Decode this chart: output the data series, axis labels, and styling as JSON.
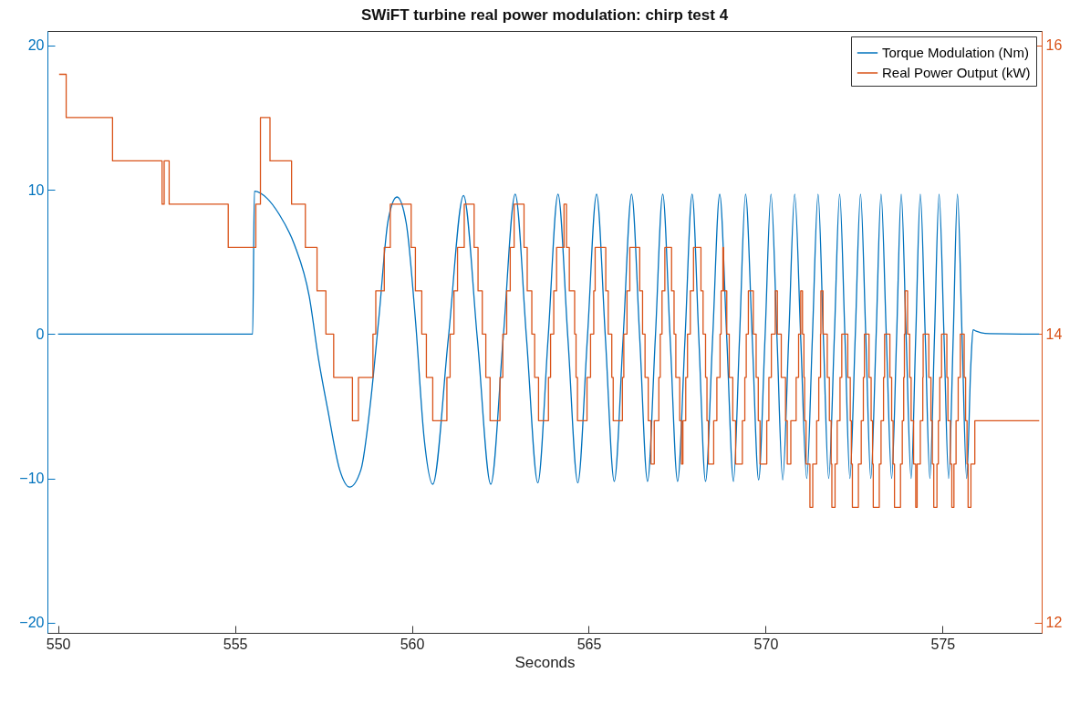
{
  "chart_data": {
    "type": "line",
    "title": "SWiFT turbine real power modulation: chirp test 4",
    "xlabel": "Seconds",
    "xlim": [
      549.7,
      577.8
    ],
    "xticks": [
      550,
      555,
      560,
      565,
      570,
      575
    ],
    "ylim": [
      -20.7,
      21
    ],
    "yticks": [
      -20,
      -10,
      0,
      10,
      20
    ],
    "y2lim": [
      11.93,
      16.1
    ],
    "y2ticks": [
      12,
      14,
      16
    ],
    "legend": "top right",
    "series": [
      {
        "name": "Torque Modulation (Nm)",
        "color": "#0072bd",
        "x": [
          550.0,
          555.5,
          555.55,
          555.91,
          556.25,
          556.68,
          557.1,
          557.36,
          557.62,
          557.96,
          558.24,
          558.56,
          558.81,
          559.07,
          559.33,
          559.58,
          559.84,
          560.1,
          560.35,
          560.59,
          561.03,
          561.46,
          561.85,
          562.23,
          562.58,
          562.92,
          563.24,
          563.56,
          563.85,
          564.13,
          564.41,
          564.69,
          564.96,
          565.22,
          565.47,
          565.72,
          565.97,
          566.21,
          566.44,
          566.66,
          566.88,
          567.09,
          567.3,
          567.51,
          567.72,
          567.92,
          568.11,
          568.3,
          568.5,
          568.7,
          568.9,
          569.09,
          569.26,
          569.43,
          569.62,
          569.8,
          569.98,
          570.15,
          570.32,
          570.48,
          570.65,
          570.82,
          570.99,
          571.16,
          571.32,
          571.48,
          571.63,
          571.78,
          571.94,
          572.09,
          572.24,
          572.38,
          572.53,
          572.68,
          572.83,
          572.97,
          573.12,
          573.26,
          573.41,
          573.56,
          573.7,
          573.83,
          573.97,
          574.11,
          574.24,
          574.37,
          574.51,
          574.64,
          574.77,
          574.9,
          575.04,
          575.17,
          575.3,
          575.42,
          575.55,
          575.68,
          575.8,
          575.86,
          575.95,
          576.2,
          577.73
        ],
        "values": [
          0,
          0,
          9.9,
          9.4,
          8.3,
          6.2,
          2.6,
          -1.7,
          -5.2,
          -9.4,
          -10.6,
          -9.4,
          -5.2,
          1.2,
          7.9,
          9.5,
          7.7,
          1.0,
          -7.3,
          -10.4,
          -0.3,
          9.6,
          -0.3,
          -10.4,
          -0.3,
          9.7,
          -0.3,
          -10.3,
          -0.3,
          9.7,
          -0.3,
          -10.3,
          -0.3,
          9.7,
          -0.3,
          -10.2,
          -0.3,
          9.7,
          -0.3,
          -10.2,
          -0.3,
          9.7,
          -0.3,
          -10.2,
          -0.3,
          9.7,
          -0.3,
          -10.2,
          -0.3,
          9.7,
          -0.3,
          -10.2,
          -0.3,
          9.7,
          -0.3,
          -10.1,
          -0.3,
          9.7,
          -0.3,
          -10.1,
          -0.3,
          9.7,
          -0.3,
          -10.0,
          -0.2,
          9.7,
          -0.2,
          -10.0,
          -0.2,
          9.7,
          -0.2,
          -10.0,
          -0.2,
          9.7,
          -0.2,
          -10.0,
          -0.2,
          9.7,
          -0.2,
          -10.0,
          -0.2,
          9.7,
          -0.2,
          -10.0,
          -0.2,
          9.7,
          -0.2,
          -10.0,
          -0.2,
          9.7,
          -0.2,
          -10.0,
          -0.2,
          9.7,
          -0.2,
          -10.0,
          -2.0,
          0.3,
          0.2,
          0.05,
          0
        ]
      },
      {
        "name": "Real Power Output (kW)",
        "color": "#d95319",
        "type": "step",
        "axis": "y2",
        "x": [
          550.03,
          550.23,
          551.54,
          552.94,
          553.0,
          553.14,
          554.81,
          555.59,
          555.72,
          555.99,
          556.6,
          556.99,
          557.32,
          557.57,
          557.79,
          558.32,
          558.49,
          558.9,
          558.98,
          559.22,
          559.39,
          559.98,
          560.1,
          560.28,
          560.41,
          560.59,
          560.99,
          561.08,
          561.19,
          561.29,
          561.48,
          561.76,
          561.87,
          561.99,
          562.09,
          562.21,
          562.49,
          562.57,
          562.68,
          562.78,
          562.89,
          563.17,
          563.26,
          563.39,
          563.47,
          563.58,
          563.86,
          563.92,
          564.01,
          564.09,
          564.3,
          564.37,
          564.45,
          564.6,
          564.64,
          564.68,
          564.95,
          565.05,
          565.14,
          565.18,
          565.48,
          565.55,
          565.65,
          565.69,
          565.95,
          565.99,
          566.08,
          566.16,
          566.44,
          566.52,
          566.59,
          566.68,
          566.76,
          566.85,
          566.98,
          567.02,
          567.07,
          567.15,
          567.34,
          567.41,
          567.46,
          567.57,
          567.62,
          567.66,
          567.74,
          567.79,
          567.87,
          567.96,
          568.17,
          568.23,
          568.3,
          568.34,
          568.38,
          568.53,
          568.62,
          568.71,
          568.74,
          568.79,
          568.81,
          568.9,
          568.97,
          569.07,
          569.15,
          569.34,
          569.41,
          569.45,
          569.51,
          569.65,
          569.73,
          569.79,
          569.84,
          570.03,
          570.09,
          570.16,
          570.27,
          570.33,
          570.44,
          570.56,
          570.61,
          570.71,
          570.86,
          570.93,
          570.99,
          571.04,
          571.08,
          571.1,
          571.14,
          571.25,
          571.33,
          571.44,
          571.5,
          571.55,
          571.56,
          571.62,
          571.74,
          571.8,
          571.85,
          571.87,
          571.96,
          572.02,
          572.1,
          572.15,
          572.32,
          572.39,
          572.42,
          572.45,
          572.62,
          572.7,
          572.76,
          572.79,
          572.92,
          572.98,
          573.02,
          573.04,
          573.21,
          573.26,
          573.33,
          573.36,
          573.51,
          573.56,
          573.6,
          573.64,
          573.81,
          573.86,
          573.9,
          573.92,
          573.94,
          574.01,
          574.07,
          574.11,
          574.18,
          574.24,
          574.28,
          574.37,
          574.44,
          574.45,
          574.61,
          574.67,
          574.71,
          574.75,
          574.84,
          574.88,
          574.92,
          574.97,
          575.12,
          575.15,
          575.22,
          575.26,
          575.32,
          575.38,
          575.44,
          575.5,
          575.61,
          575.65,
          575.69,
          575.72,
          575.8,
          575.91,
          577.73
        ],
        "values": [
          15.8,
          15.5,
          15.2,
          14.9,
          15.2,
          14.9,
          14.6,
          14.9,
          15.5,
          15.2,
          14.9,
          14.6,
          14.3,
          14.0,
          13.7,
          13.4,
          13.7,
          14.0,
          14.3,
          14.6,
          14.9,
          14.6,
          14.3,
          14.0,
          13.7,
          13.4,
          13.7,
          14.0,
          14.3,
          14.6,
          14.9,
          14.6,
          14.3,
          14.0,
          13.7,
          13.4,
          13.7,
          14.0,
          14.3,
          14.6,
          14.9,
          14.6,
          14.3,
          14.0,
          13.7,
          13.4,
          13.7,
          14.0,
          14.3,
          14.6,
          14.9,
          14.6,
          14.3,
          14.0,
          13.7,
          13.4,
          13.7,
          14.0,
          14.3,
          14.6,
          14.3,
          14.0,
          13.7,
          13.4,
          13.7,
          14.0,
          14.3,
          14.6,
          14.3,
          14.0,
          13.7,
          13.4,
          13.1,
          13.4,
          13.7,
          14.0,
          14.3,
          14.6,
          14.3,
          14.0,
          13.7,
          13.4,
          13.1,
          13.4,
          13.7,
          14.0,
          14.3,
          14.6,
          14.3,
          14.0,
          13.7,
          13.4,
          13.1,
          13.4,
          13.7,
          14.0,
          14.3,
          14.6,
          14.3,
          14.0,
          13.7,
          13.4,
          13.1,
          13.4,
          13.7,
          14.0,
          14.3,
          14.0,
          13.7,
          13.4,
          13.1,
          13.4,
          13.7,
          14.0,
          14.3,
          14.0,
          13.7,
          13.4,
          13.1,
          13.4,
          13.7,
          14.0,
          14.3,
          14.0,
          13.7,
          13.4,
          13.1,
          12.8,
          13.1,
          13.4,
          13.7,
          14.0,
          14.3,
          14.0,
          13.7,
          13.4,
          13.1,
          12.8,
          13.1,
          13.4,
          13.7,
          14.0,
          13.7,
          13.4,
          13.1,
          12.8,
          13.1,
          13.4,
          13.7,
          14.0,
          13.7,
          13.4,
          13.1,
          12.8,
          13.1,
          13.4,
          13.7,
          14.0,
          13.7,
          13.4,
          13.1,
          12.8,
          13.1,
          13.4,
          13.7,
          14.0,
          14.3,
          14.0,
          13.7,
          13.4,
          13.1,
          12.8,
          13.1,
          13.4,
          13.7,
          14.0,
          13.7,
          13.4,
          13.1,
          12.8,
          13.1,
          13.4,
          13.7,
          14.0,
          13.7,
          13.4,
          13.1,
          12.8,
          13.1,
          13.4,
          13.7,
          14.0,
          13.7,
          13.4,
          13.1,
          12.8,
          13.1,
          13.4,
          13.4
        ]
      }
    ]
  }
}
